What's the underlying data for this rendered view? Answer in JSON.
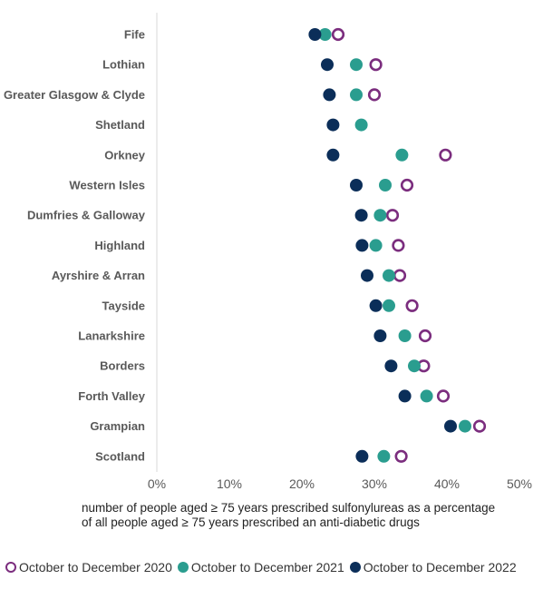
{
  "chart_data": {
    "type": "scatter",
    "orientation": "horizontal-dot-plot",
    "categories": [
      "Fife",
      "Lothian",
      "Greater Glasgow & Clyde",
      "Shetland",
      "Orkney",
      "Western Isles",
      "Dumfries & Galloway",
      "Highland",
      "Ayrshire & Arran",
      "Tayside",
      "Lanarkshire",
      "Borders",
      "Forth Valley",
      "Grampian",
      "Scotland"
    ],
    "series": [
      {
        "name": "October to December 2020",
        "color": "#7B2D7E",
        "marker": "hollow-circle",
        "values": [
          25.0,
          30.2,
          30.0,
          null,
          39.8,
          34.5,
          32.5,
          33.3,
          33.5,
          35.2,
          37.0,
          36.8,
          39.5,
          44.5,
          33.7
        ]
      },
      {
        "name": "October to December 2021",
        "color": "#2A9D8F",
        "marker": "filled-circle",
        "values": [
          23.2,
          27.5,
          27.5,
          28.2,
          33.8,
          31.5,
          30.8,
          30.2,
          32.0,
          32.0,
          34.2,
          35.5,
          37.2,
          42.5,
          31.3
        ]
      },
      {
        "name": "October to December 2022",
        "color": "#0B2E59",
        "marker": "filled-circle",
        "values": [
          21.8,
          23.5,
          23.8,
          24.3,
          24.3,
          27.5,
          28.2,
          28.3,
          29.0,
          30.2,
          30.8,
          32.3,
          34.2,
          40.5,
          28.3
        ]
      }
    ],
    "x_ticks": [
      "0%",
      "10%",
      "20%",
      "30%",
      "40%",
      "50%"
    ],
    "xlim": [
      0,
      50
    ],
    "xlabel": "number of people aged ≥ 75 years prescribed sulfonylureas as a percentage of all people aged ≥ 75 years prescribed an anti-diabetic drugs",
    "legend_position": "bottom",
    "grid": false
  },
  "legend": {
    "items": [
      "October to December 2020",
      "October to December 2021",
      "October to December 2022"
    ]
  }
}
